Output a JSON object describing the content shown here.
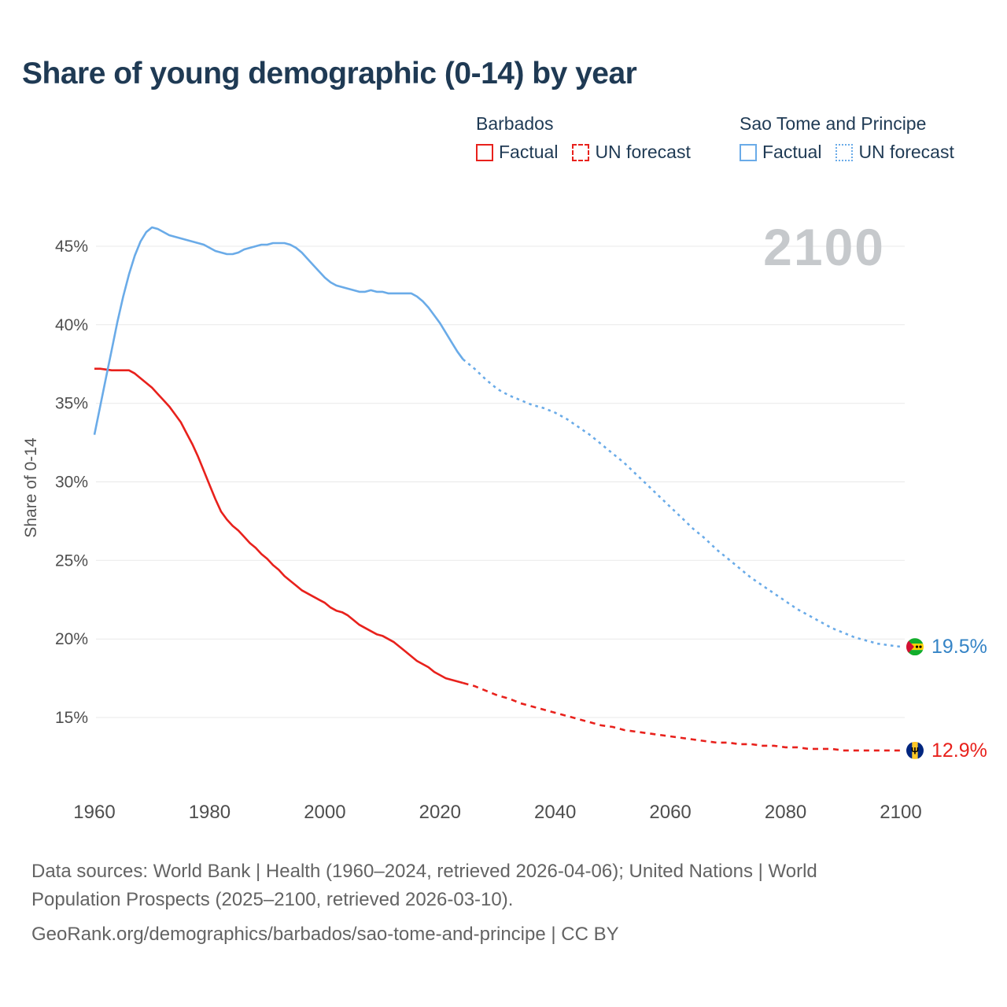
{
  "title": "Share of young demographic (0-14) by year",
  "watermark": "2100",
  "legend": {
    "groups": [
      {
        "name": "Barbados",
        "color": "#e8211c",
        "items": [
          {
            "label": "Factual",
            "line_style": "solid"
          },
          {
            "label": "UN forecast",
            "line_style": "dashed"
          }
        ]
      },
      {
        "name": "Sao Tome and Principe",
        "color": "#6aabe8",
        "items": [
          {
            "label": "Factual",
            "line_style": "solid"
          },
          {
            "label": "UN forecast",
            "line_style": "dotted"
          }
        ]
      }
    ]
  },
  "chart_data": {
    "type": "line",
    "title": "Share of young demographic (0-14) by year",
    "xlabel": "",
    "ylabel": "Share of 0-14",
    "ylim": [
      12,
      47.5
    ],
    "xlim": [
      1955,
      2115
    ],
    "grid": "horizontal",
    "yticks": [
      15,
      20,
      25,
      30,
      35,
      40,
      45
    ],
    "xticks": [
      1960,
      1980,
      2000,
      2020,
      2040,
      2060,
      2080,
      2100
    ],
    "series": [
      {
        "name": "Barbados Factual",
        "color": "#e8211c",
        "line_style": "solid",
        "points": [
          [
            1960,
            37.2
          ],
          [
            1961,
            37.2
          ],
          [
            1962,
            37.15
          ],
          [
            1963,
            37.1
          ],
          [
            1964,
            37.1
          ],
          [
            1965,
            37.1
          ],
          [
            1966,
            37.1
          ],
          [
            1967,
            36.9
          ],
          [
            1968,
            36.6
          ],
          [
            1969,
            36.3
          ],
          [
            1970,
            36.0
          ],
          [
            1971,
            35.6
          ],
          [
            1972,
            35.2
          ],
          [
            1973,
            34.8
          ],
          [
            1974,
            34.3
          ],
          [
            1975,
            33.8
          ],
          [
            1976,
            33.1
          ],
          [
            1977,
            32.4
          ],
          [
            1978,
            31.6
          ],
          [
            1979,
            30.7
          ],
          [
            1980,
            29.8
          ],
          [
            1981,
            28.9
          ],
          [
            1982,
            28.1
          ],
          [
            1983,
            27.6
          ],
          [
            1984,
            27.2
          ],
          [
            1985,
            26.9
          ],
          [
            1986,
            26.5
          ],
          [
            1987,
            26.1
          ],
          [
            1988,
            25.8
          ],
          [
            1989,
            25.4
          ],
          [
            1990,
            25.1
          ],
          [
            1991,
            24.7
          ],
          [
            1992,
            24.4
          ],
          [
            1993,
            24.0
          ],
          [
            1994,
            23.7
          ],
          [
            1995,
            23.4
          ],
          [
            1996,
            23.1
          ],
          [
            1997,
            22.9
          ],
          [
            1998,
            22.7
          ],
          [
            1999,
            22.5
          ],
          [
            2000,
            22.3
          ],
          [
            2001,
            22.0
          ],
          [
            2002,
            21.8
          ],
          [
            2003,
            21.7
          ],
          [
            2004,
            21.5
          ],
          [
            2005,
            21.2
          ],
          [
            2006,
            20.9
          ],
          [
            2007,
            20.7
          ],
          [
            2008,
            20.5
          ],
          [
            2009,
            20.3
          ],
          [
            2010,
            20.2
          ],
          [
            2011,
            20.0
          ],
          [
            2012,
            19.8
          ],
          [
            2013,
            19.5
          ],
          [
            2014,
            19.2
          ],
          [
            2015,
            18.9
          ],
          [
            2016,
            18.6
          ],
          [
            2017,
            18.4
          ],
          [
            2018,
            18.2
          ],
          [
            2019,
            17.9
          ],
          [
            2020,
            17.7
          ],
          [
            2021,
            17.5
          ],
          [
            2022,
            17.4
          ],
          [
            2023,
            17.3
          ],
          [
            2024,
            17.2
          ]
        ]
      },
      {
        "name": "Barbados UN forecast",
        "color": "#e8211c",
        "line_style": "dashed",
        "points": [
          [
            2024,
            17.2
          ],
          [
            2026,
            17.0
          ],
          [
            2028,
            16.7
          ],
          [
            2030,
            16.4
          ],
          [
            2032,
            16.2
          ],
          [
            2034,
            15.9
          ],
          [
            2036,
            15.7
          ],
          [
            2038,
            15.5
          ],
          [
            2040,
            15.3
          ],
          [
            2042,
            15.1
          ],
          [
            2044,
            14.9
          ],
          [
            2046,
            14.7
          ],
          [
            2048,
            14.5
          ],
          [
            2050,
            14.4
          ],
          [
            2052,
            14.2
          ],
          [
            2054,
            14.1
          ],
          [
            2056,
            14.0
          ],
          [
            2058,
            13.9
          ],
          [
            2060,
            13.8
          ],
          [
            2062,
            13.7
          ],
          [
            2064,
            13.6
          ],
          [
            2066,
            13.5
          ],
          [
            2068,
            13.4
          ],
          [
            2070,
            13.4
          ],
          [
            2072,
            13.3
          ],
          [
            2074,
            13.3
          ],
          [
            2076,
            13.2
          ],
          [
            2078,
            13.2
          ],
          [
            2080,
            13.1
          ],
          [
            2082,
            13.1
          ],
          [
            2084,
            13.0
          ],
          [
            2086,
            13.0
          ],
          [
            2088,
            13.0
          ],
          [
            2090,
            12.9
          ],
          [
            2092,
            12.9
          ],
          [
            2094,
            12.9
          ],
          [
            2096,
            12.9
          ],
          [
            2098,
            12.9
          ],
          [
            2100,
            12.9
          ]
        ]
      },
      {
        "name": "Sao Tome and Principe Factual",
        "color": "#6aabe8",
        "line_style": "solid",
        "points": [
          [
            1960,
            33.0
          ],
          [
            1961,
            34.8
          ],
          [
            1962,
            36.6
          ],
          [
            1963,
            38.4
          ],
          [
            1964,
            40.2
          ],
          [
            1965,
            41.8
          ],
          [
            1966,
            43.2
          ],
          [
            1967,
            44.4
          ],
          [
            1968,
            45.3
          ],
          [
            1969,
            45.9
          ],
          [
            1970,
            46.2
          ],
          [
            1971,
            46.1
          ],
          [
            1972,
            45.9
          ],
          [
            1973,
            45.7
          ],
          [
            1974,
            45.6
          ],
          [
            1975,
            45.5
          ],
          [
            1976,
            45.4
          ],
          [
            1977,
            45.3
          ],
          [
            1978,
            45.2
          ],
          [
            1979,
            45.1
          ],
          [
            1980,
            44.9
          ],
          [
            1981,
            44.7
          ],
          [
            1982,
            44.6
          ],
          [
            1983,
            44.5
          ],
          [
            1984,
            44.5
          ],
          [
            1985,
            44.6
          ],
          [
            1986,
            44.8
          ],
          [
            1987,
            44.9
          ],
          [
            1988,
            45.0
          ],
          [
            1989,
            45.1
          ],
          [
            1990,
            45.1
          ],
          [
            1991,
            45.2
          ],
          [
            1992,
            45.2
          ],
          [
            1993,
            45.2
          ],
          [
            1994,
            45.1
          ],
          [
            1995,
            44.9
          ],
          [
            1996,
            44.6
          ],
          [
            1997,
            44.2
          ],
          [
            1998,
            43.8
          ],
          [
            1999,
            43.4
          ],
          [
            2000,
            43.0
          ],
          [
            2001,
            42.7
          ],
          [
            2002,
            42.5
          ],
          [
            2003,
            42.4
          ],
          [
            2004,
            42.3
          ],
          [
            2005,
            42.2
          ],
          [
            2006,
            42.1
          ],
          [
            2007,
            42.1
          ],
          [
            2008,
            42.2
          ],
          [
            2009,
            42.1
          ],
          [
            2010,
            42.1
          ],
          [
            2011,
            42.0
          ],
          [
            2012,
            42.0
          ],
          [
            2013,
            42.0
          ],
          [
            2014,
            42.0
          ],
          [
            2015,
            42.0
          ],
          [
            2016,
            41.8
          ],
          [
            2017,
            41.5
          ],
          [
            2018,
            41.1
          ],
          [
            2019,
            40.6
          ],
          [
            2020,
            40.1
          ],
          [
            2021,
            39.5
          ],
          [
            2022,
            38.9
          ],
          [
            2023,
            38.3
          ],
          [
            2024,
            37.8
          ]
        ]
      },
      {
        "name": "Sao Tome and Principe UN forecast",
        "color": "#6aabe8",
        "line_style": "dotted",
        "points": [
          [
            2024,
            37.8
          ],
          [
            2026,
            37.2
          ],
          [
            2028,
            36.5
          ],
          [
            2030,
            35.9
          ],
          [
            2032,
            35.5
          ],
          [
            2034,
            35.2
          ],
          [
            2036,
            34.9
          ],
          [
            2038,
            34.7
          ],
          [
            2040,
            34.4
          ],
          [
            2042,
            34.0
          ],
          [
            2044,
            33.5
          ],
          [
            2046,
            33.0
          ],
          [
            2048,
            32.4
          ],
          [
            2050,
            31.8
          ],
          [
            2052,
            31.2
          ],
          [
            2054,
            30.5
          ],
          [
            2056,
            29.8
          ],
          [
            2058,
            29.1
          ],
          [
            2060,
            28.4
          ],
          [
            2062,
            27.7
          ],
          [
            2064,
            27.0
          ],
          [
            2066,
            26.4
          ],
          [
            2068,
            25.7
          ],
          [
            2070,
            25.1
          ],
          [
            2072,
            24.5
          ],
          [
            2074,
            23.9
          ],
          [
            2076,
            23.4
          ],
          [
            2078,
            22.9
          ],
          [
            2080,
            22.4
          ],
          [
            2082,
            21.9
          ],
          [
            2084,
            21.5
          ],
          [
            2086,
            21.1
          ],
          [
            2088,
            20.7
          ],
          [
            2090,
            20.4
          ],
          [
            2092,
            20.1
          ],
          [
            2094,
            19.9
          ],
          [
            2096,
            19.7
          ],
          [
            2098,
            19.6
          ],
          [
            2100,
            19.5
          ]
        ]
      }
    ],
    "end_labels": [
      {
        "text": "19.5%",
        "value": 19.5,
        "color": "#3584c6",
        "flag": "sao-tome-flag"
      },
      {
        "text": "12.9%",
        "value": 12.9,
        "color": "#e8211c",
        "flag": "barbados-flag"
      }
    ]
  },
  "footer": {
    "lines": [
      "Data sources: World Bank | Health (1960–2024, retrieved 2026-04-06); United Nations | World",
      "Population Prospects (2025–2100, retrieved 2026-03-10).",
      "GeoRank.org/demographics/barbados/sao-tome-and-principe | CC BY"
    ]
  }
}
